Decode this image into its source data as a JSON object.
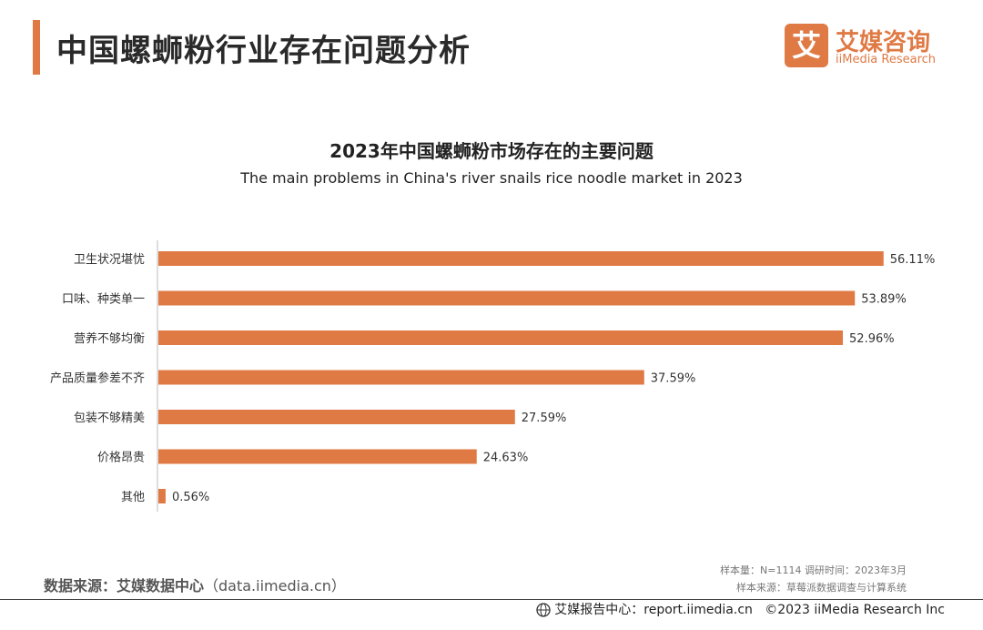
{
  "header": {
    "title": "中国螺蛳粉行业存在问题分析",
    "accent_color": "#e07a45"
  },
  "logo": {
    "mark": "艾",
    "name_cn": "艾媒咨询",
    "name_en": "iiMedia Research",
    "color": "#e07a45"
  },
  "chart_data": {
    "type": "bar",
    "orientation": "horizontal",
    "title": "2023年中国螺蛳粉市场存在的主要问题",
    "subtitle": "The main problems in China's river snails rice noodle market in 2023",
    "categories": [
      "卫生状况堪忧",
      "口味、种类单一",
      "营养不够均衡",
      "产品质量参差不齐",
      "包装不够精美",
      "价格昂贵",
      "其他"
    ],
    "values": [
      56.11,
      53.89,
      52.96,
      37.59,
      27.59,
      24.63,
      0.56
    ],
    "value_labels": [
      "56.11%",
      "53.89%",
      "52.96%",
      "37.59%",
      "27.59%",
      "24.63%",
      "0.56%"
    ],
    "xlim": [
      0,
      60
    ],
    "unit": "%",
    "bar_color": "#e07a45",
    "grid": false,
    "legend": "none"
  },
  "footer": {
    "source_label": "数据来源：艾媒数据中心",
    "source_link": "（data.iimedia.cn）",
    "sample_line": "样本量：N=1114    调研时间：2023年3月",
    "sample_source": "样本来源：草莓派数据调查与计算系统",
    "report_center": "艾媒报告中心：report.iimedia.cn",
    "copyright": "©2023  iiMedia Research  Inc"
  }
}
